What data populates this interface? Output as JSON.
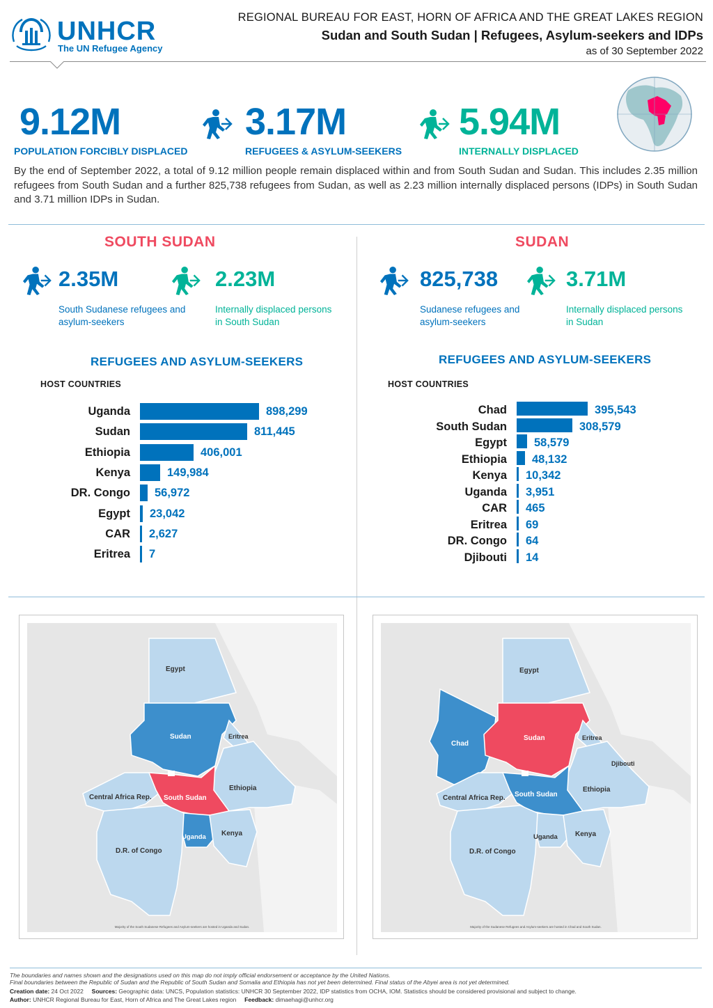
{
  "header": {
    "logo_name": "UNHCR",
    "logo_tagline": "The UN Refugee Agency",
    "region": "REGIONAL BUREAU FOR EAST, HORN OF AFRICA AND THE GREAT LAKES REGION",
    "title": "Sudan and South Sudan | Refugees, Asylum-seekers and IDPs",
    "date": "as of 30 September 2022"
  },
  "kpis": [
    {
      "value": "9.12M",
      "label": "POPULATION FORCIBLY DISPLACED"
    },
    {
      "value": "3.17M",
      "label": "REFUGEES & ASYLUM-SEEKERS"
    },
    {
      "value": "5.94M",
      "label": "INTERNALLY DISPLACED"
    }
  ],
  "intro": "By the end of September 2022, a total of 9.12 million people remain displaced within and from South Sudan and Sudan. This includes 2.35 million refugees from South Sudan and a further 825,738 refugees from Sudan, as well as 2.23 million internally displaced persons (IDPs) in South Sudan and 3.71 million IDPs in Sudan.",
  "south_sudan": {
    "title": "SOUTH SUDAN",
    "refugees_value": "2.35M",
    "refugees_label_1": "South Sudanese refugees and",
    "refugees_label_2": "asylum-seekers",
    "idp_value": "2.23M",
    "idp_label_1": "Internally displaced persons",
    "idp_label_2": "in South Sudan",
    "chart_title": "REFUGEES AND ASYLUM-SEEKERS",
    "host_label": "HOST COUNTRIES"
  },
  "sudan": {
    "title": "SUDAN",
    "refugees_value": "825,738",
    "refugees_label_1": "Sudanese refugees and",
    "refugees_label_2": "asylum-seekers",
    "idp_value": "3.71M",
    "idp_label_1": "Internally displaced persons",
    "idp_label_2": "in Sudan",
    "chart_title": "REFUGEES AND ASYLUM-SEEKERS",
    "host_label": "HOST COUNTRIES"
  },
  "chart_data": [
    {
      "type": "bar",
      "title": "REFUGEES AND ASYLUM-SEEKERS",
      "orientation": "horizontal",
      "categories": [
        "Uganda",
        "Sudan",
        "Ethiopia",
        "Kenya",
        "DR. Congo",
        "Egypt",
        "CAR",
        "Eritrea"
      ],
      "values": [
        898299,
        811445,
        406001,
        149984,
        56972,
        23042,
        2627,
        7
      ],
      "labels": [
        "898,299",
        "811,445",
        "406,001",
        "149,984",
        "56,972",
        "23,042",
        "2,627",
        "7"
      ],
      "color": "#0072bc"
    },
    {
      "type": "bar",
      "title": "REFUGEES AND ASYLUM-SEEKERS",
      "orientation": "horizontal",
      "categories": [
        "Chad",
        "South Sudan",
        "Egypt",
        "Ethiopia",
        "Kenya",
        "Uganda",
        "CAR",
        "Eritrea",
        "DR. Congo",
        "Djibouti"
      ],
      "values": [
        395543,
        308579,
        58579,
        48132,
        10342,
        3951,
        465,
        69,
        64,
        14
      ],
      "labels": [
        "395,543",
        "308,579",
        "58,579",
        "48,132",
        "10,342",
        "3,951",
        "465",
        "69",
        "64",
        "14"
      ],
      "color": "#0072bc"
    }
  ],
  "map_left": {
    "labels": {
      "egypt": "Egypt",
      "sudan": "Sudan",
      "eritrea": "Eritrea",
      "ethiopia": "Ethiopia",
      "car": "Central Africa Rep.",
      "south_sudan": "South Sudan",
      "uganda": "Uganda",
      "kenya": "Kenya",
      "drc": "D.R. of Congo"
    },
    "note": "Majority of the South Sudanese Refugees and Asylum-seekers are hosted in Uganda and Sudan."
  },
  "map_right": {
    "labels": {
      "egypt": "Egypt",
      "chad": "Chad",
      "sudan": "Sudan",
      "eritrea": "Eritrea",
      "djibouti": "Djibouti",
      "ethiopia": "Ethiopia",
      "car": "Central Africa Rep.",
      "south_sudan": "South Sudan",
      "uganda": "Uganda",
      "kenya": "Kenya",
      "drc": "D.R. of Congo"
    },
    "note": "Majority of the Sudanese Refugees and Asylum-seekers are hosted in Chad and South Sudan."
  },
  "colors": {
    "primary": "#0072bc",
    "green": "#00b398",
    "red": "#ef4a60",
    "host_dark": "#3d8fcc",
    "host_light": "#bcd8ee"
  },
  "footer": {
    "disclaimer_1": "The boundaries and names shown and the designations used on this map do not imply official endorsement or acceptance by the United Nations.",
    "disclaimer_2": "Final boundaries between the Republic of Sudan and the Republic of South Sudan and Somalia and Ethiopia has not yet been determined. Final status of the Abyei area is not yet determined.",
    "creation_label": "Creation date:",
    "creation_date": "24 Oct 2022",
    "sources_label": "Sources:",
    "sources": "Geographic data: UNCS, Population statistics: UNHCR 30 September 2022, IDP statistics from OCHA, IOM. Statistics should be considered provisional and subject to change.",
    "author_label": "Author:",
    "author": "UNHCR Regional Bureau for East, Horn of Africa and The Great Lakes region",
    "feedback_label": "Feedback:",
    "feedback": "dimaehagi@unhcr.org"
  }
}
